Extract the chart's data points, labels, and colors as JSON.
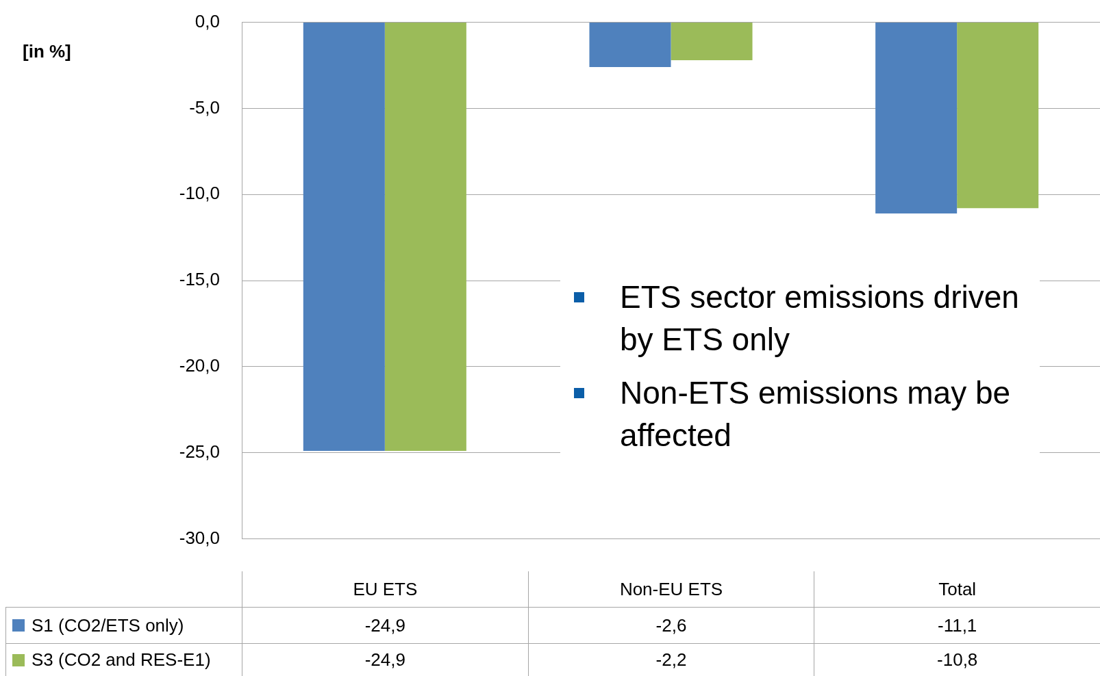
{
  "chart_data": {
    "type": "bar",
    "categories": [
      "EU ETS",
      "Non-EU ETS",
      "Total"
    ],
    "series": [
      {
        "name": "S1 (CO2/ETS only)",
        "color": "#4f81bd",
        "values": [
          -24.9,
          -2.6,
          -11.1
        ],
        "value_labels": [
          "-24,9",
          "-2,6",
          "-11,1"
        ]
      },
      {
        "name": "S3 (CO2 and RES-E1)",
        "color": "#9bbb59",
        "values": [
          -24.9,
          -2.2,
          -10.8
        ],
        "value_labels": [
          "-24,9",
          "-2,2",
          "-10,8"
        ]
      }
    ],
    "ylim": [
      -30,
      0
    ],
    "yticks": [
      {
        "value": -30,
        "label": "-30,0"
      },
      {
        "value": -25,
        "label": "-25,0"
      },
      {
        "value": -20,
        "label": "-20,0"
      },
      {
        "value": -15,
        "label": "-15,0"
      },
      {
        "value": -10,
        "label": "-10,0"
      },
      {
        "value": -5,
        "label": "-5,0"
      },
      {
        "value": 0,
        "label": "0,0"
      }
    ],
    "grid": "y",
    "legend": "bottom left",
    "annotations": [
      "[in %]",
      "ETS sector emissions driven by ETS only",
      "Non-ETS emissions may be affected"
    ]
  }
}
